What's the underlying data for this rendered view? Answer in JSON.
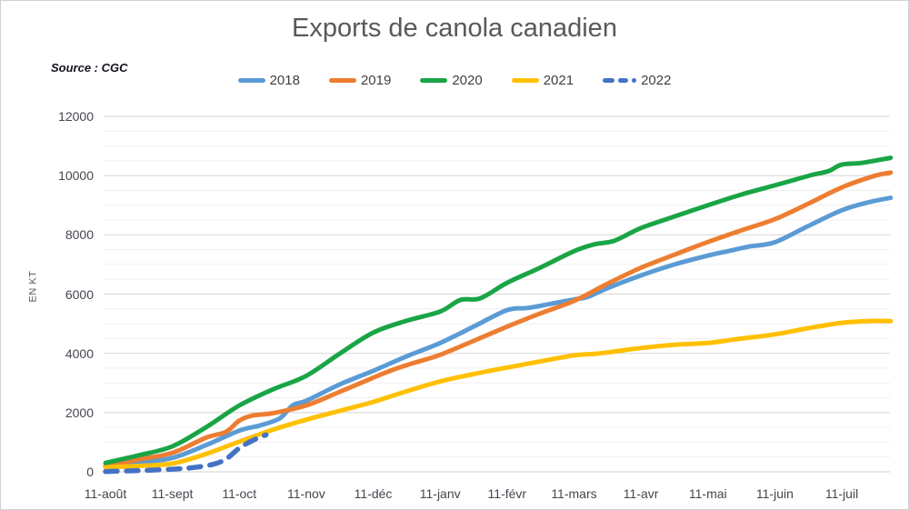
{
  "title": "Exports de canola canadien",
  "source_label": "Source : CGC",
  "y_axis": {
    "label": "EN KT",
    "tick_labels": [
      "0",
      "2000",
      "4000",
      "6000",
      "8000",
      "10000",
      "12000"
    ]
  },
  "x_axis": {
    "tick_labels": [
      "11-août",
      "11-sept",
      "11-oct",
      "11-nov",
      "11-déc",
      "11-janv",
      "11-févr",
      "11-mars",
      "11-avr",
      "11-mai",
      "11-juin",
      "11-juil"
    ]
  },
  "colors": {
    "background": "#ffffff",
    "frame_border": "#cdd0d6",
    "title_text": "#595959",
    "axis_text": "#44464f",
    "legend_text": "#404040",
    "gridline_minor": "#efefef",
    "gridline_major": "#d9d9d9"
  },
  "chart_data": {
    "type": "line",
    "title": "Exports de canola canadien",
    "xlabel": "",
    "ylabel": "EN KT",
    "ylim": [
      0,
      12000
    ],
    "y_major_step": 2000,
    "y_minor_step": 500,
    "grid": "horizontal-only",
    "legend_position": "top-center",
    "x_unit": "months after 11-août (0 = 11-août, 11 = 11-juil, series extend to ~11.7)",
    "x_tick_positions": [
      0,
      1,
      2,
      3,
      4,
      5,
      6,
      7,
      8,
      9,
      10,
      11
    ],
    "x_tick_labels": [
      "11-août",
      "11-sept",
      "11-oct",
      "11-nov",
      "11-déc",
      "11-janv",
      "11-févr",
      "11-mars",
      "11-avr",
      "11-mai",
      "11-juin",
      "11-juil"
    ],
    "series": [
      {
        "name": "2018",
        "color": "#5B9BD5",
        "style": "solid",
        "points": [
          [
            0,
            150
          ],
          [
            0.5,
            300
          ],
          [
            1,
            470
          ],
          [
            1.5,
            900
          ],
          [
            2,
            1390
          ],
          [
            2.3,
            1560
          ],
          [
            2.6,
            1800
          ],
          [
            2.8,
            2250
          ],
          [
            3,
            2400
          ],
          [
            3.5,
            2950
          ],
          [
            4,
            3410
          ],
          [
            4.5,
            3900
          ],
          [
            5,
            4350
          ],
          [
            5.5,
            4900
          ],
          [
            6,
            5460
          ],
          [
            6.3,
            5530
          ],
          [
            6.6,
            5650
          ],
          [
            7,
            5820
          ],
          [
            7.2,
            5900
          ],
          [
            7.5,
            6200
          ],
          [
            8,
            6630
          ],
          [
            8.5,
            7000
          ],
          [
            9,
            7300
          ],
          [
            9.3,
            7450
          ],
          [
            9.6,
            7600
          ],
          [
            10,
            7750
          ],
          [
            10.5,
            8300
          ],
          [
            11,
            8830
          ],
          [
            11.4,
            9100
          ],
          [
            11.73,
            9250
          ]
        ]
      },
      {
        "name": "2019",
        "color": "#ED7D31",
        "style": "solid",
        "points": [
          [
            0,
            200
          ],
          [
            0.5,
            420
          ],
          [
            1,
            640
          ],
          [
            1.5,
            1150
          ],
          [
            1.8,
            1350
          ],
          [
            2,
            1730
          ],
          [
            2.2,
            1900
          ],
          [
            2.5,
            1980
          ],
          [
            3,
            2240
          ],
          [
            3.5,
            2700
          ],
          [
            4,
            3180
          ],
          [
            4.3,
            3450
          ],
          [
            4.6,
            3670
          ],
          [
            5,
            3950
          ],
          [
            5.5,
            4420
          ],
          [
            6,
            4900
          ],
          [
            6.5,
            5350
          ],
          [
            7,
            5770
          ],
          [
            7.5,
            6350
          ],
          [
            8,
            6890
          ],
          [
            8.5,
            7330
          ],
          [
            9,
            7760
          ],
          [
            9.5,
            8150
          ],
          [
            10,
            8530
          ],
          [
            10.5,
            9050
          ],
          [
            11,
            9600
          ],
          [
            11.5,
            10000
          ],
          [
            11.73,
            10100
          ]
        ]
      },
      {
        "name": "2020",
        "color": "#19A546",
        "style": "solid",
        "points": [
          [
            0,
            300
          ],
          [
            0.5,
            560
          ],
          [
            1,
            860
          ],
          [
            1.5,
            1500
          ],
          [
            2,
            2240
          ],
          [
            2.5,
            2780
          ],
          [
            3,
            3240
          ],
          [
            3.5,
            3990
          ],
          [
            4,
            4700
          ],
          [
            4.5,
            5100
          ],
          [
            5,
            5410
          ],
          [
            5.3,
            5800
          ],
          [
            5.6,
            5860
          ],
          [
            6,
            6380
          ],
          [
            6.5,
            6900
          ],
          [
            7,
            7450
          ],
          [
            7.3,
            7680
          ],
          [
            7.6,
            7800
          ],
          [
            8,
            8230
          ],
          [
            8.5,
            8620
          ],
          [
            9,
            9000
          ],
          [
            9.5,
            9360
          ],
          [
            10,
            9670
          ],
          [
            10.3,
            9860
          ],
          [
            10.55,
            10020
          ],
          [
            10.8,
            10150
          ],
          [
            11,
            10370
          ],
          [
            11.3,
            10430
          ],
          [
            11.73,
            10600
          ]
        ]
      },
      {
        "name": "2021",
        "color": "#FFC000",
        "style": "solid",
        "points": [
          [
            0,
            150
          ],
          [
            0.5,
            200
          ],
          [
            1,
            280
          ],
          [
            1.5,
            600
          ],
          [
            2,
            1020
          ],
          [
            2.5,
            1420
          ],
          [
            3,
            1760
          ],
          [
            3.5,
            2060
          ],
          [
            4,
            2360
          ],
          [
            4.5,
            2720
          ],
          [
            5,
            3050
          ],
          [
            5.5,
            3300
          ],
          [
            6,
            3520
          ],
          [
            6.5,
            3730
          ],
          [
            7,
            3930
          ],
          [
            7.3,
            3980
          ],
          [
            7.6,
            4060
          ],
          [
            8,
            4180
          ],
          [
            8.5,
            4290
          ],
          [
            9,
            4350
          ],
          [
            9.5,
            4500
          ],
          [
            10,
            4640
          ],
          [
            10.5,
            4850
          ],
          [
            11,
            5030
          ],
          [
            11.4,
            5090
          ],
          [
            11.73,
            5090
          ]
        ]
      },
      {
        "name": "2022",
        "color": "#4472C4",
        "style": "dashed",
        "points": [
          [
            0,
            10
          ],
          [
            0.3,
            30
          ],
          [
            0.6,
            50
          ],
          [
            1,
            90
          ],
          [
            1.3,
            140
          ],
          [
            1.6,
            250
          ],
          [
            1.8,
            430
          ],
          [
            2,
            800
          ],
          [
            2.2,
            1060
          ],
          [
            2.4,
            1250
          ]
        ]
      }
    ]
  }
}
